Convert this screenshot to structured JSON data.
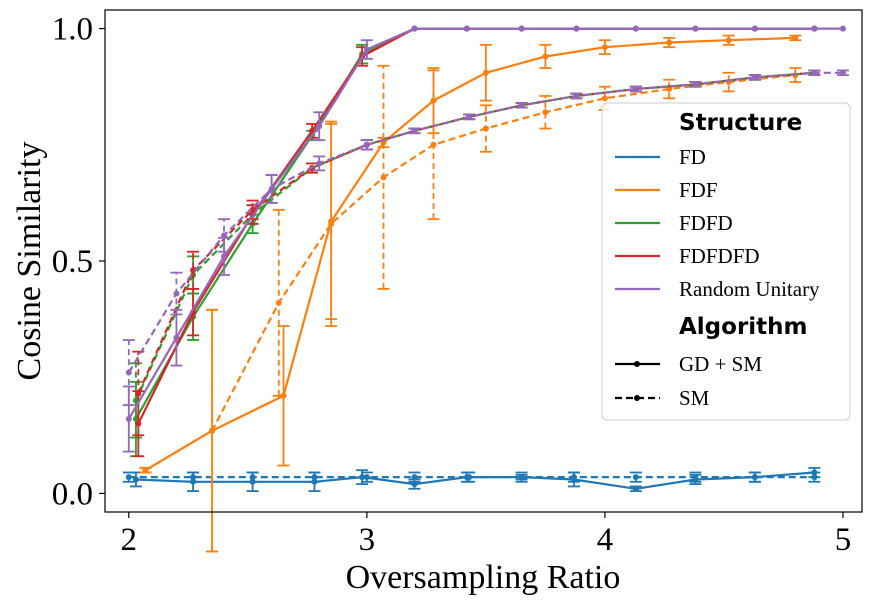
{
  "chart_data": {
    "type": "line",
    "title": "",
    "xlabel": "Oversampling Ratio",
    "ylabel": "Cosine Similarity",
    "xlim": [
      1.9,
      5.08
    ],
    "ylim": [
      -0.04,
      1.04
    ],
    "xticks": [
      2,
      3,
      4,
      5
    ],
    "xtick_labels": [
      "2",
      "3",
      "4",
      "5"
    ],
    "yticks": [
      0.0,
      0.5,
      1.0
    ],
    "ytick_labels": [
      "0.0",
      "0.5",
      "1.0"
    ],
    "grid": false,
    "legend": {
      "position": "right",
      "structure_title": "Structure",
      "algorithm_title": "Algorithm",
      "structures": [
        {
          "name": "FD",
          "color": "#1f77b4"
        },
        {
          "name": "FDF",
          "color": "#ff7f0e"
        },
        {
          "name": "FDFD",
          "color": "#2ca02c"
        },
        {
          "name": "FDFDFD",
          "color": "#d62728"
        },
        {
          "name": "Random Unitary",
          "color": "#9467bd"
        }
      ],
      "algorithms": [
        {
          "name": "GD + SM",
          "dash": "solid"
        },
        {
          "name": "SM",
          "dash": "dashed"
        }
      ]
    },
    "series": [
      {
        "name": "FD GD + SM",
        "structure": "FD",
        "algorithm": "GD + SM",
        "color": "#1f77b4",
        "dashed": false,
        "points": [
          [
            2.03,
            0.03,
            0.015
          ],
          [
            2.27,
            0.025,
            0.02
          ],
          [
            2.52,
            0.025,
            0.02
          ],
          [
            2.78,
            0.025,
            0.02
          ],
          [
            2.98,
            0.035,
            0.015
          ],
          [
            3.2,
            0.02,
            0.01
          ],
          [
            3.42,
            0.035,
            0.01
          ],
          [
            3.65,
            0.035,
            0.005
          ],
          [
            3.87,
            0.03,
            0.015
          ],
          [
            4.13,
            0.01,
            0.005
          ],
          [
            4.38,
            0.03,
            0.01
          ],
          [
            4.63,
            0.035,
            0.01
          ],
          [
            4.88,
            0.045,
            0.01
          ]
        ]
      },
      {
        "name": "FD SM",
        "structure": "FD",
        "algorithm": "SM",
        "color": "#1f77b4",
        "dashed": true,
        "points": [
          [
            2.0,
            0.035,
            0.01
          ],
          [
            2.27,
            0.035,
            0.01
          ],
          [
            2.52,
            0.035,
            0.01
          ],
          [
            2.78,
            0.035,
            0.01
          ],
          [
            3.0,
            0.035,
            0.01
          ],
          [
            3.2,
            0.035,
            0.01
          ],
          [
            3.43,
            0.035,
            0.01
          ],
          [
            3.65,
            0.035,
            0.01
          ],
          [
            3.87,
            0.035,
            0.01
          ],
          [
            4.13,
            0.035,
            0.01
          ],
          [
            4.38,
            0.035,
            0.01
          ],
          [
            4.63,
            0.035,
            0.01
          ],
          [
            4.88,
            0.035,
            0.01
          ]
        ]
      },
      {
        "name": "FDF GD + SM",
        "structure": "FDF",
        "algorithm": "GD + SM",
        "color": "#ff7f0e",
        "dashed": false,
        "points": [
          [
            2.07,
            0.05,
            0.005
          ],
          [
            2.35,
            0.135,
            0.26
          ],
          [
            2.65,
            0.21,
            0.15
          ],
          [
            2.85,
            0.585,
            0.21
          ],
          [
            3.07,
            0.755,
            0.01
          ],
          [
            3.28,
            0.845,
            0.07
          ],
          [
            3.5,
            0.905,
            0.06
          ],
          [
            3.75,
            0.94,
            0.025
          ],
          [
            4.0,
            0.96,
            0.015
          ],
          [
            4.27,
            0.97,
            0.01
          ],
          [
            4.52,
            0.975,
            0.01
          ],
          [
            4.8,
            0.98,
            0.005
          ]
        ]
      },
      {
        "name": "FDF SM",
        "structure": "FDF",
        "algorithm": "SM",
        "color": "#ff7f0e",
        "dashed": true,
        "points": [
          [
            2.07,
            0.05,
            0.005
          ],
          [
            2.35,
            0.135,
            0.26
          ],
          [
            2.63,
            0.41,
            0.2
          ],
          [
            2.85,
            0.58,
            0.22
          ],
          [
            3.07,
            0.68,
            0.24
          ],
          [
            3.28,
            0.75,
            0.16
          ],
          [
            3.5,
            0.785,
            0.05
          ],
          [
            3.75,
            0.82,
            0.035
          ],
          [
            4.0,
            0.85,
            0.025
          ],
          [
            4.27,
            0.87,
            0.02
          ],
          [
            4.52,
            0.885,
            0.02
          ],
          [
            4.8,
            0.9,
            0.015
          ]
        ]
      },
      {
        "name": "FDFD GD + SM",
        "structure": "FDFD",
        "algorithm": "GD + SM",
        "color": "#2ca02c",
        "dashed": false,
        "points": [
          [
            2.03,
            0.16,
            0.08
          ],
          [
            2.27,
            0.38,
            0.05
          ],
          [
            2.52,
            0.58,
            0.02
          ],
          [
            2.77,
            0.77,
            0.01
          ],
          [
            2.98,
            0.945,
            0.02
          ],
          [
            3.2,
            1.0,
            0.0
          ],
          [
            3.42,
            1.0,
            0.0
          ],
          [
            3.65,
            1.0,
            0.0
          ],
          [
            3.88,
            1.0,
            0.0
          ],
          [
            4.13,
            1.0,
            0.0
          ],
          [
            4.38,
            1.0,
            0.0
          ],
          [
            4.63,
            1.0,
            0.0
          ],
          [
            4.88,
            1.0,
            0.0
          ]
        ]
      },
      {
        "name": "FDFD SM",
        "structure": "FDFD",
        "algorithm": "SM",
        "color": "#2ca02c",
        "dashed": true,
        "points": [
          [
            2.03,
            0.2,
            0.08
          ],
          [
            2.27,
            0.47,
            0.04
          ],
          [
            2.52,
            0.6,
            0.02
          ],
          [
            2.77,
            0.7,
            0.01
          ],
          [
            3.0,
            0.75,
            0.01
          ],
          [
            3.2,
            0.78,
            0.005
          ],
          [
            3.43,
            0.81,
            0.005
          ],
          [
            3.65,
            0.835,
            0.005
          ],
          [
            3.88,
            0.855,
            0.005
          ],
          [
            4.13,
            0.87,
            0.005
          ],
          [
            4.38,
            0.88,
            0.005
          ],
          [
            4.63,
            0.895,
            0.005
          ],
          [
            4.88,
            0.905,
            0.005
          ]
        ]
      },
      {
        "name": "FDFDFD GD + SM",
        "structure": "FDFDFD",
        "algorithm": "GD + SM",
        "color": "#d62728",
        "dashed": false,
        "points": [
          [
            2.04,
            0.15,
            0.07
          ],
          [
            2.27,
            0.39,
            0.05
          ],
          [
            2.52,
            0.6,
            0.02
          ],
          [
            2.77,
            0.78,
            0.015
          ],
          [
            2.98,
            0.94,
            0.02
          ],
          [
            3.2,
            1.0,
            0.0
          ],
          [
            3.42,
            1.0,
            0.0
          ],
          [
            3.65,
            1.0,
            0.0
          ],
          [
            3.88,
            1.0,
            0.0
          ],
          [
            4.13,
            1.0,
            0.0
          ],
          [
            4.38,
            1.0,
            0.0
          ],
          [
            4.63,
            1.0,
            0.0
          ],
          [
            4.88,
            1.0,
            0.0
          ]
        ]
      },
      {
        "name": "FDFDFD SM",
        "structure": "FDFDFD",
        "algorithm": "SM",
        "color": "#d62728",
        "dashed": true,
        "points": [
          [
            2.04,
            0.215,
            0.09
          ],
          [
            2.27,
            0.48,
            0.04
          ],
          [
            2.52,
            0.61,
            0.02
          ],
          [
            2.77,
            0.7,
            0.01
          ],
          [
            3.0,
            0.75,
            0.01
          ],
          [
            3.2,
            0.78,
            0.005
          ],
          [
            3.43,
            0.81,
            0.005
          ],
          [
            3.65,
            0.835,
            0.005
          ],
          [
            3.88,
            0.855,
            0.005
          ],
          [
            4.13,
            0.87,
            0.005
          ],
          [
            4.38,
            0.88,
            0.005
          ],
          [
            4.63,
            0.895,
            0.005
          ],
          [
            4.88,
            0.905,
            0.005
          ]
        ]
      },
      {
        "name": "Random Unitary GD + SM",
        "structure": "Random Unitary",
        "algorithm": "GD + SM",
        "color": "#9467bd",
        "dashed": false,
        "points": [
          [
            2.0,
            0.16,
            0.07
          ],
          [
            2.2,
            0.335,
            0.06
          ],
          [
            2.4,
            0.51,
            0.04
          ],
          [
            2.6,
            0.655,
            0.03
          ],
          [
            2.8,
            0.79,
            0.03
          ],
          [
            3.0,
            0.955,
            0.02
          ],
          [
            3.2,
            1.0,
            0.0
          ],
          [
            3.42,
            1.0,
            0.0
          ],
          [
            3.65,
            1.0,
            0.0
          ],
          [
            3.88,
            1.0,
            0.0
          ],
          [
            4.13,
            1.0,
            0.0
          ],
          [
            4.38,
            1.0,
            0.0
          ],
          [
            4.63,
            1.0,
            0.0
          ],
          [
            4.88,
            1.0,
            0.0
          ],
          [
            5.0,
            1.0,
            0.0
          ]
        ]
      },
      {
        "name": "Random Unitary SM",
        "structure": "Random Unitary",
        "algorithm": "SM",
        "color": "#9467bd",
        "dashed": true,
        "points": [
          [
            2.0,
            0.26,
            0.07
          ],
          [
            2.2,
            0.43,
            0.045
          ],
          [
            2.4,
            0.555,
            0.035
          ],
          [
            2.6,
            0.655,
            0.03
          ],
          [
            2.8,
            0.71,
            0.015
          ],
          [
            3.0,
            0.75,
            0.01
          ],
          [
            3.2,
            0.78,
            0.005
          ],
          [
            3.43,
            0.81,
            0.005
          ],
          [
            3.65,
            0.835,
            0.005
          ],
          [
            3.88,
            0.855,
            0.005
          ],
          [
            4.13,
            0.87,
            0.005
          ],
          [
            4.38,
            0.88,
            0.005
          ],
          [
            4.63,
            0.895,
            0.005
          ],
          [
            4.88,
            0.905,
            0.005
          ],
          [
            5.0,
            0.905,
            0.005
          ]
        ]
      }
    ]
  }
}
